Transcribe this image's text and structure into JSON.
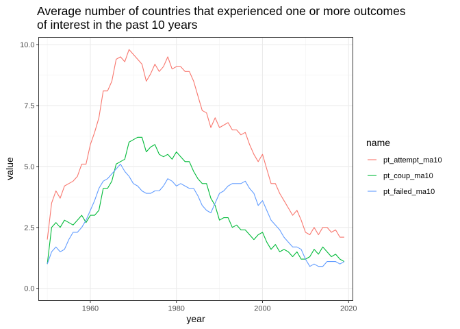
{
  "chart_data": {
    "type": "line",
    "title_lines": [
      "Average number of countries that experienced one or more outcomes",
      "of interest in the past 10 years"
    ],
    "xlabel": "year",
    "ylabel": "value",
    "xlim": [
      1948,
      2021
    ],
    "ylim": [
      -0.5,
      10.3
    ],
    "x_ticks": [
      1960,
      1980,
      2000,
      2020
    ],
    "y_ticks": [
      0.0,
      2.5,
      5.0,
      7.5,
      10.0
    ],
    "y_tick_labels": [
      "0.0",
      "2.5",
      "5.0",
      "7.5",
      "10.0"
    ],
    "grid": true,
    "legend": {
      "title": "name",
      "placement": "right"
    },
    "x": [
      1950,
      1951,
      1952,
      1953,
      1954,
      1955,
      1956,
      1957,
      1958,
      1959,
      1960,
      1961,
      1962,
      1963,
      1964,
      1965,
      1966,
      1967,
      1968,
      1969,
      1970,
      1971,
      1972,
      1973,
      1974,
      1975,
      1976,
      1977,
      1978,
      1979,
      1980,
      1981,
      1982,
      1983,
      1984,
      1985,
      1986,
      1987,
      1988,
      1989,
      1990,
      1991,
      1992,
      1993,
      1994,
      1995,
      1996,
      1997,
      1998,
      1999,
      2000,
      2001,
      2002,
      2003,
      2004,
      2005,
      2006,
      2007,
      2008,
      2009,
      2010,
      2011,
      2012,
      2013,
      2014,
      2015,
      2016,
      2017,
      2018,
      2019
    ],
    "series": [
      {
        "name": "pt_attempt_ma10",
        "color": "#F8766D",
        "values": [
          2.0,
          3.5,
          4.0,
          3.7,
          4.2,
          4.3,
          4.4,
          4.6,
          5.1,
          5.1,
          5.9,
          6.4,
          7.0,
          8.1,
          8.1,
          8.5,
          9.4,
          9.5,
          9.3,
          9.8,
          9.6,
          9.4,
          9.2,
          8.5,
          8.8,
          9.2,
          8.9,
          9.1,
          9.5,
          9.0,
          9.1,
          9.1,
          8.9,
          8.9,
          8.5,
          7.9,
          7.3,
          7.2,
          6.6,
          7.0,
          6.6,
          6.7,
          6.8,
          6.5,
          6.5,
          6.3,
          6.4,
          5.9,
          5.5,
          5.2,
          5.5,
          4.9,
          4.3,
          4.3,
          3.9,
          3.6,
          3.3,
          3.0,
          3.2,
          2.8,
          2.3,
          2.2,
          2.5,
          2.2,
          2.5,
          2.5,
          2.3,
          2.4,
          2.1,
          2.1
        ]
      },
      {
        "name": "pt_coup_ma10",
        "color": "#00BA38",
        "values": [
          1.0,
          2.5,
          2.7,
          2.5,
          2.8,
          2.7,
          2.6,
          2.8,
          3.0,
          2.7,
          3.0,
          3.0,
          3.2,
          4.1,
          4.1,
          4.4,
          5.1,
          5.2,
          5.3,
          6.0,
          6.1,
          6.2,
          6.2,
          5.6,
          5.8,
          5.9,
          5.5,
          5.4,
          5.5,
          5.3,
          5.6,
          5.4,
          5.2,
          5.2,
          4.8,
          4.5,
          4.3,
          4.3,
          3.7,
          3.4,
          2.8,
          2.9,
          2.9,
          2.5,
          2.6,
          2.4,
          2.4,
          2.2,
          2.0,
          2.2,
          2.3,
          1.9,
          1.6,
          1.8,
          1.5,
          1.6,
          1.5,
          1.3,
          1.5,
          1.2,
          1.2,
          1.3,
          1.6,
          1.4,
          1.7,
          1.5,
          1.3,
          1.4,
          1.2,
          1.1
        ]
      },
      {
        "name": "pt_failed_ma10",
        "color": "#619CFF",
        "values": [
          1.0,
          1.5,
          1.7,
          1.5,
          1.6,
          2.0,
          2.3,
          2.3,
          2.5,
          2.8,
          3.2,
          3.6,
          4.1,
          4.4,
          4.5,
          4.7,
          4.9,
          5.1,
          4.8,
          4.6,
          4.3,
          4.2,
          4.0,
          3.9,
          3.9,
          4.0,
          4.0,
          4.2,
          4.5,
          4.4,
          4.2,
          4.3,
          4.2,
          4.1,
          4.1,
          3.8,
          3.4,
          3.2,
          3.1,
          3.5,
          3.9,
          4.0,
          4.2,
          4.3,
          4.3,
          4.3,
          4.4,
          4.1,
          3.9,
          3.4,
          3.6,
          3.2,
          2.8,
          2.6,
          2.4,
          2.1,
          1.9,
          1.7,
          1.7,
          1.6,
          1.2,
          0.9,
          1.0,
          0.9,
          0.9,
          1.1,
          1.1,
          1.1,
          1.0,
          1.1
        ]
      }
    ]
  }
}
